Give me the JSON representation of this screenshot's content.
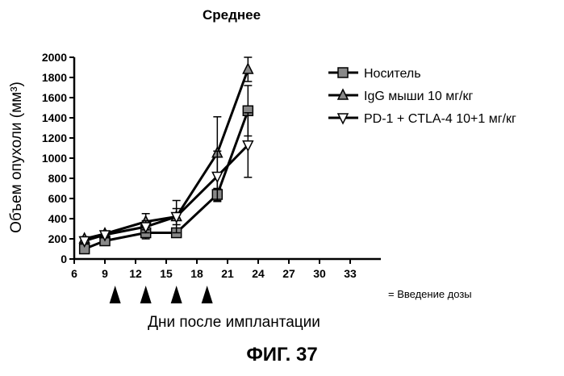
{
  "figure_label": "ФИГ. 37",
  "chart_data": {
    "type": "line",
    "title": "Среднее",
    "xlabel": "Дни после имплантации",
    "ylabel": "Объем опухоли (мм³)",
    "xlim": [
      6,
      36
    ],
    "ylim": [
      0,
      2000
    ],
    "x_ticks": [
      6,
      9,
      12,
      15,
      18,
      21,
      24,
      27,
      30,
      33
    ],
    "y_ticks": [
      0,
      200,
      400,
      600,
      800,
      1000,
      1200,
      1400,
      1600,
      1800,
      2000
    ],
    "legend_position": "top-right",
    "dose_marker_label": "= Введение дозы",
    "dose_days": [
      10,
      13,
      16,
      19
    ],
    "series": [
      {
        "name": "Носитель",
        "marker": "square",
        "x": [
          7,
          9,
          13,
          16,
          20,
          23
        ],
        "y": [
          100,
          180,
          260,
          260,
          640,
          1470
        ],
        "err": [
          20,
          20,
          60,
          40,
          60,
          250
        ]
      },
      {
        "name": "IgG мыши 10 мг/кг",
        "marker": "triangle-up",
        "x": [
          7,
          9,
          13,
          16,
          20,
          23
        ],
        "y": [
          200,
          250,
          370,
          420,
          1050,
          1880
        ],
        "err": [
          20,
          20,
          80,
          160,
          360,
          120
        ]
      },
      {
        "name": "PD-1 + CTLA-4 10+1 мг/кг",
        "marker": "triangle-down",
        "x": [
          7,
          9,
          13,
          16,
          20,
          23
        ],
        "y": [
          180,
          240,
          320,
          420,
          820,
          1130
        ],
        "err": [
          20,
          20,
          60,
          80,
          250,
          320
        ]
      }
    ]
  }
}
